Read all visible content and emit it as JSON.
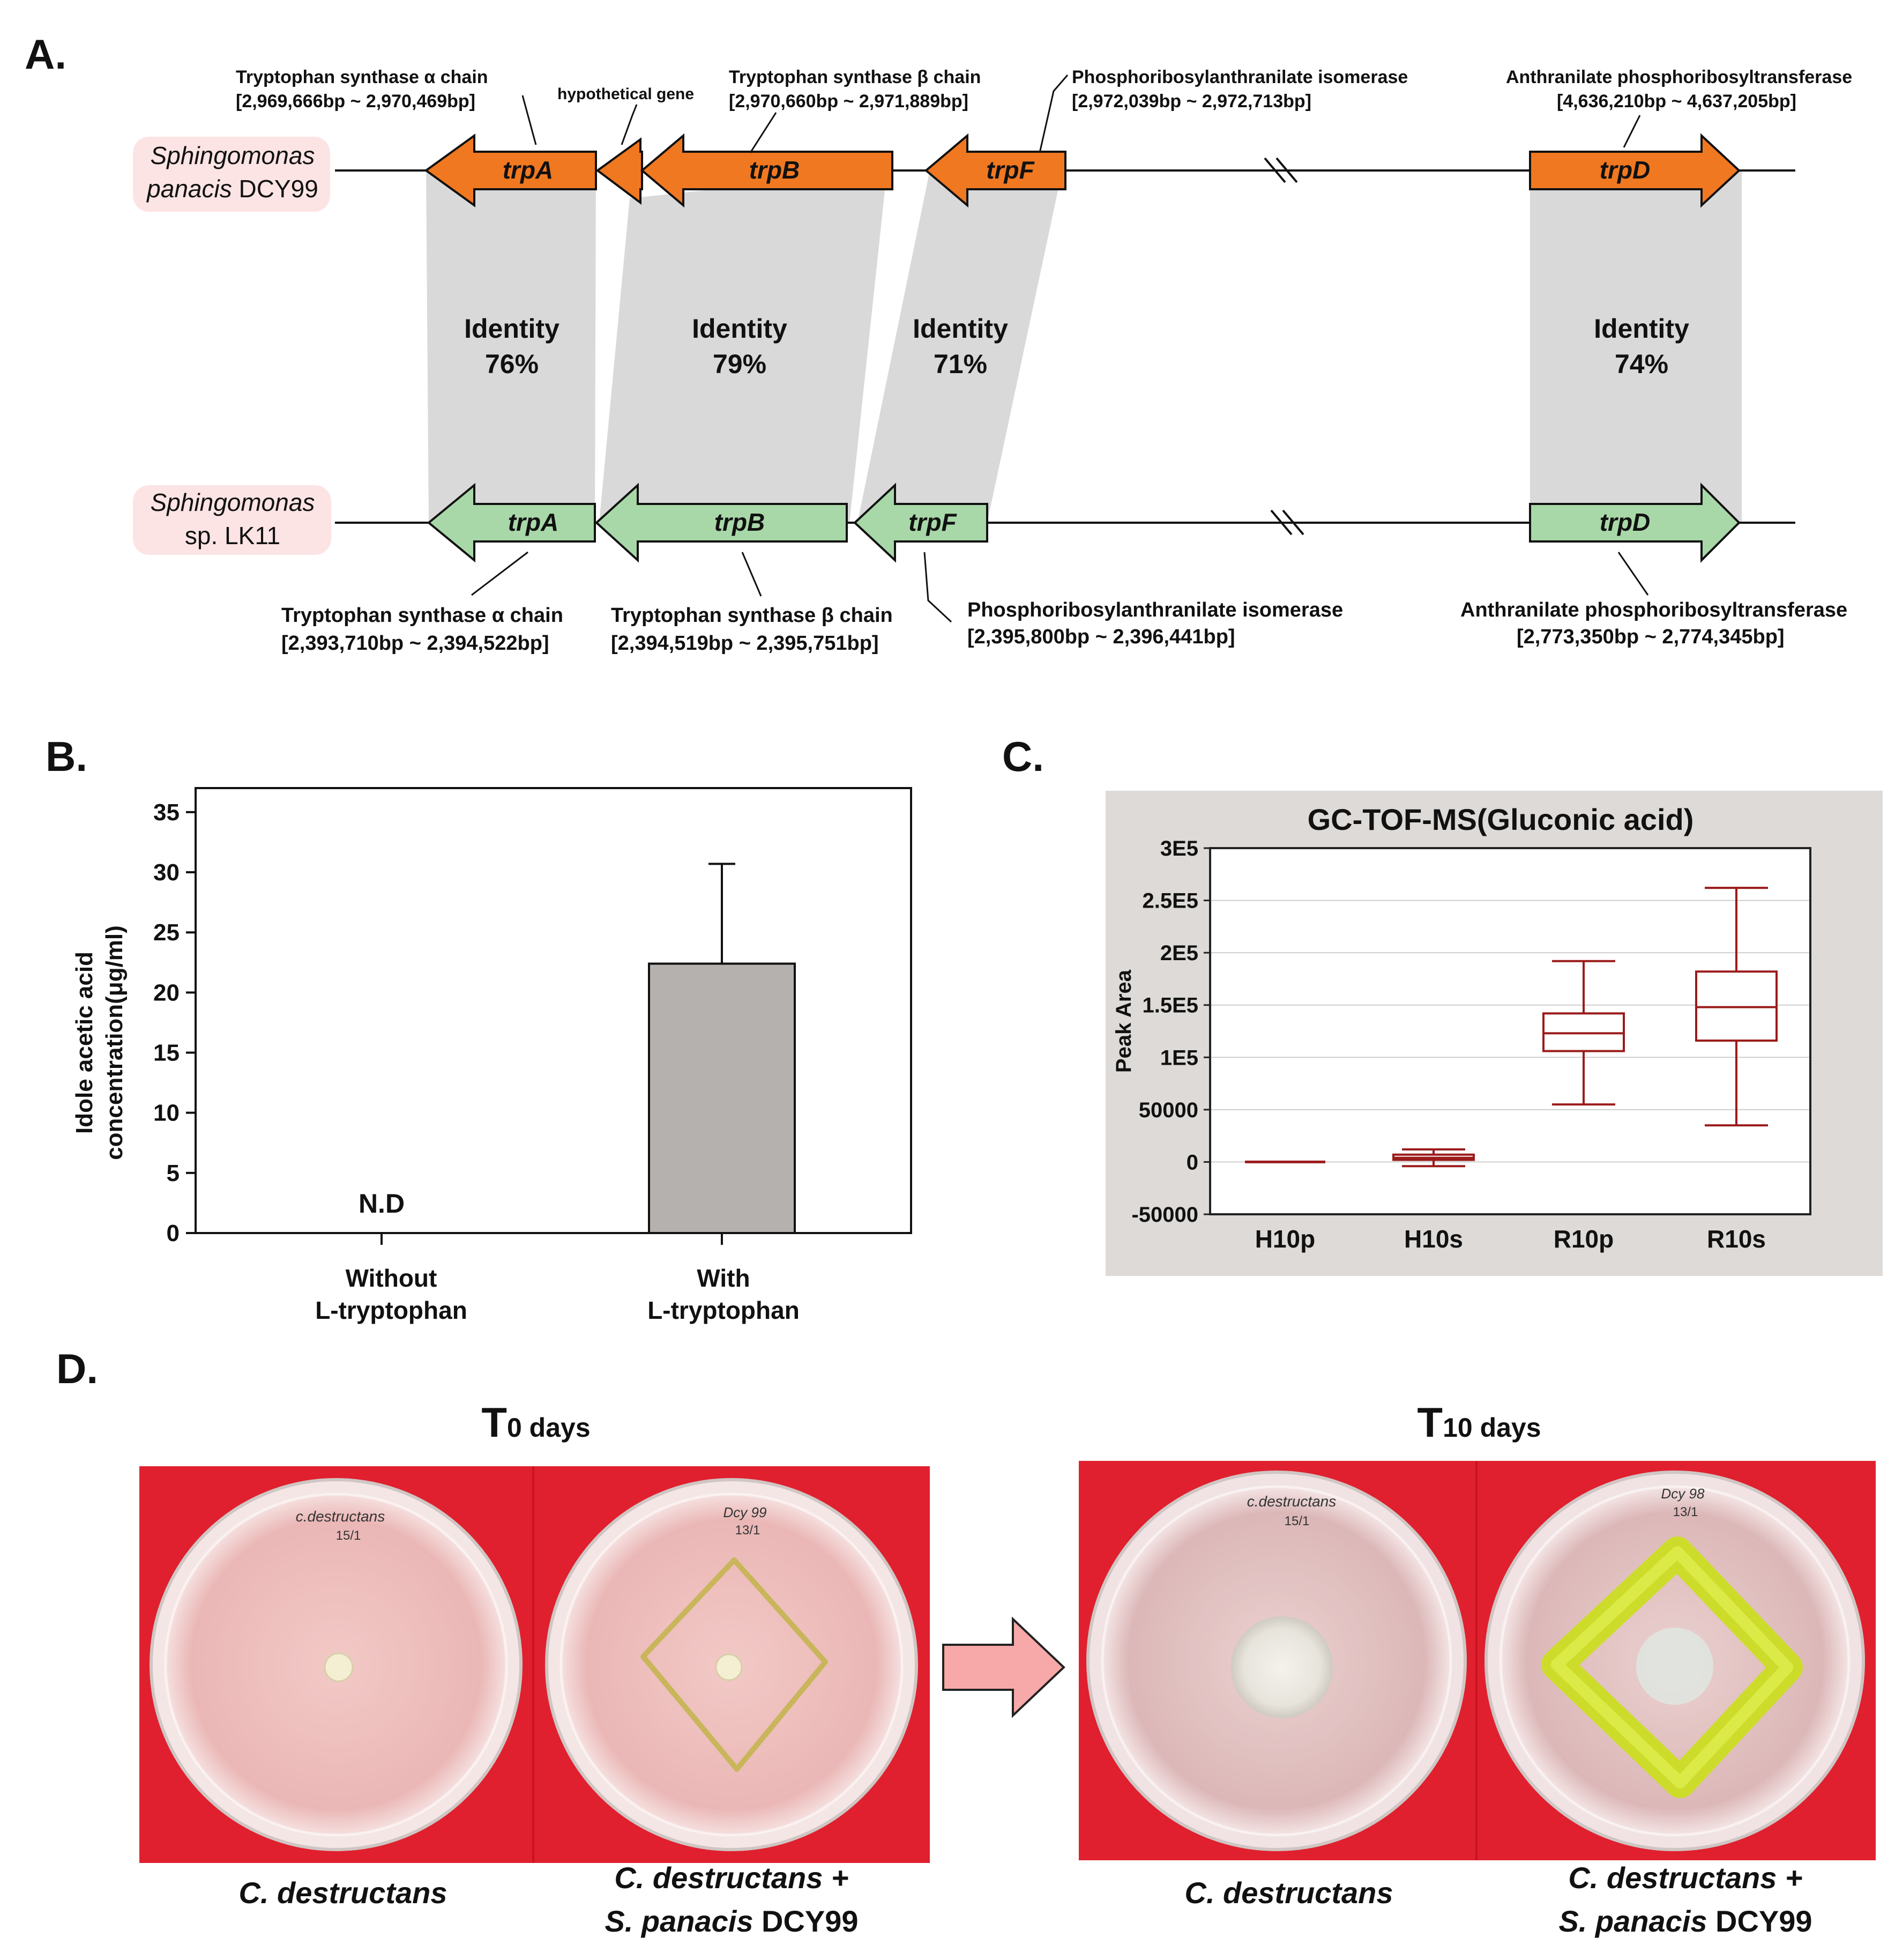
{
  "panelA": {
    "label": "A.",
    "top_org": {
      "line1": "Sphingomonas",
      "line2_it": "panacis",
      "line2_rest": " DCY99"
    },
    "bottom_org": {
      "line1": "Sphingomonas",
      "line2": "sp. LK11"
    },
    "top_genes": {
      "trpA": "trpA",
      "trpB": "trpB",
      "trpF": "trpF",
      "trpD": "trpD"
    },
    "bottom_genes": {
      "trpA": "trpA",
      "trpB": "trpB",
      "trpF": "trpF",
      "trpD": "trpD"
    },
    "top_annotations": {
      "trpA_name": "Tryptophan synthase α chain",
      "trpA_range": "[2,969,666bp ~ 2,970,469bp]",
      "hyp": "hypothetical gene",
      "trpB_name": "Tryptophan synthase β chain",
      "trpB_range": "[2,970,660bp ~ 2,971,889bp]",
      "trpF_name": "Phosphoribosylanthranilate isomerase",
      "trpF_range": "[2,972,039bp ~ 2,972,713bp]",
      "trpD_name": "Anthranilate phosphoribosyltransferase",
      "trpD_range": "[4,636,210bp ~ 4,637,205bp]"
    },
    "bottom_annotations": {
      "trpA_name": "Tryptophan synthase α chain",
      "trpA_range": "[2,393,710bp ~ 2,394,522bp]",
      "trpB_name": "Tryptophan synthase β chain",
      "trpB_range": "[2,394,519bp ~ 2,395,751bp]",
      "trpF_name": "Phosphoribosylanthranilate isomerase",
      "trpF_range": "[2,395,800bp ~ 2,396,441bp]",
      "trpD_name": "Anthranilate phosphoribosyltransferase",
      "trpD_range": "[2,773,350bp ~ 2,774,345bp]"
    },
    "identity_word": "Identity",
    "identities": {
      "a": "76%",
      "b": "79%",
      "f": "71%",
      "d": "74%"
    },
    "colors": {
      "top_gene": "#f07820",
      "bottom_gene": "#a8d8a8",
      "shade": "#d9d9d9",
      "org_bg": "#fde4e4"
    }
  },
  "panelB": {
    "label": "B.",
    "ylabel_line1": "Idole acetic acid",
    "ylabel_line2": "concentration(μg/ml)",
    "nd_label": "N.D",
    "cat1_line1": "Without",
    "cat1_line2": "L-tryptophan",
    "cat2_line1": "With",
    "cat2_line2": "L-tryptophan"
  },
  "panelC": {
    "label": "C.",
    "title": "GC-TOF-MS(Gluconic acid)",
    "ylabel": "Peak Area",
    "bg_color": "#dddad7",
    "box_color": "#9b1b1b"
  },
  "panelD": {
    "label": "D.",
    "t0_big": "T",
    "t0_small": "0 days",
    "t10_big": "T",
    "t10_small": "10 days",
    "cap1": "C. destructans",
    "cap2_line1": "C. destructans +",
    "cap2_line2_it": "S. panacis",
    "cap2_line2_rest": " DCY99",
    "cap3": "C. destructans",
    "cap4_line1": "C. destructans +",
    "cap4_line2_it": "S. panacis",
    "cap4_line2_rest": " DCY99",
    "plate_bg": "#e0202e",
    "arrow_color": "#f7a8a8"
  },
  "chart_data": [
    {
      "type": "bar",
      "categories": [
        "Without L-tryptophan",
        "With L-tryptophan"
      ],
      "values": [
        0,
        22.4
      ],
      "errors": [
        0,
        8.3
      ],
      "annotations": [
        "N.D",
        ""
      ],
      "title": "",
      "xlabel": "",
      "ylabel": "Idole acetic acid concentration(μg/ml)",
      "ylim": [
        0,
        37
      ],
      "yticks": [
        0,
        5,
        10,
        15,
        20,
        25,
        30,
        35
      ],
      "grid": false,
      "bar_color": "#b5b1ae"
    },
    {
      "type": "box",
      "title": "GC-TOF-MS(Gluconic acid)",
      "ylabel": "Peak Area",
      "categories": [
        "H10p",
        "H10s",
        "R10p",
        "R10s"
      ],
      "boxes": [
        {
          "min": 0,
          "q1": 0,
          "median": 0,
          "q3": 0,
          "max": 0
        },
        {
          "min": -4000,
          "q1": 2000,
          "median": 4000,
          "q3": 7000,
          "max": 12000
        },
        {
          "min": 55000,
          "q1": 106000,
          "median": 123000,
          "q3": 142000,
          "max": 192000
        },
        {
          "min": 35000,
          "q1": 116000,
          "median": 148000,
          "q3": 182000,
          "max": 262000
        }
      ],
      "ylim": [
        -50000,
        300000
      ],
      "yticks": [
        -50000,
        0,
        50000,
        100000,
        150000,
        200000,
        250000,
        300000
      ],
      "ytick_labels": [
        "-50000",
        "0",
        "50000",
        "1E5",
        "1.5E5",
        "2E5",
        "2.5E5",
        "3E5"
      ],
      "grid": true
    }
  ]
}
